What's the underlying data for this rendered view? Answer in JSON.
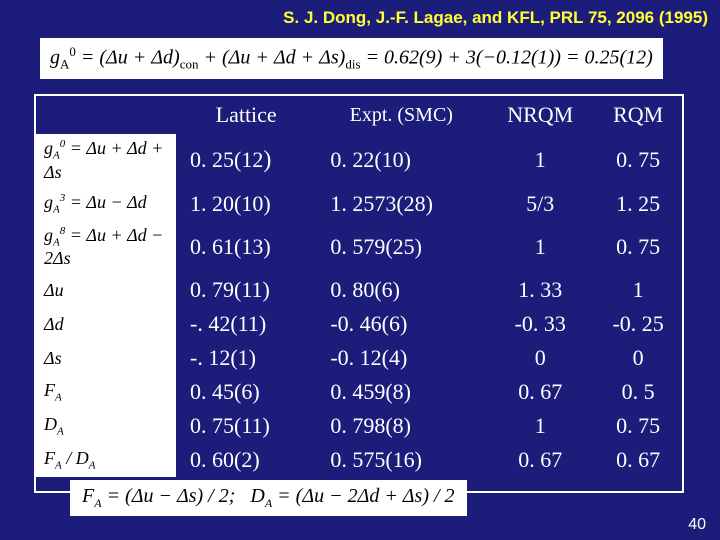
{
  "citation": "S. J. Dong, J.-F. Lagae, and KFL, PRL 75, 2096 (1995)",
  "eq_top": "g_A^0 = (Δu + Δd)_con + (Δu + Δd + Δs)_dis = 0.62(9) + 3(−0.12(1)) = 0.25(12)",
  "eq_bottom": "F_A = (Δu − Δs) / 2;   D_A = (Δu − 2Δd + Δs) / 2",
  "page_number": "40",
  "table": {
    "headers": [
      "",
      "Lattice",
      "Expt. (SMC)",
      "NRQM",
      "RQM"
    ],
    "row_labels_html": [
      "g<span class='sub'>A</span><span class='sup'>0</span> = Δu + Δd + Δs",
      "g<span class='sub'>A</span><span class='sup'>3</span> = Δu − Δd",
      "g<span class='sub'>A</span><span class='sup'>8</span> = Δu + Δd − 2Δs",
      "Δu",
      "Δd",
      "Δs",
      "F<span class='sub'>A</span>",
      "D<span class='sub'>A</span>",
      "F<span class='sub'>A</span> / D<span class='sub'>A</span>"
    ],
    "rows": [
      [
        "0. 25(12)",
        "0. 22(10)",
        "1",
        "0. 75"
      ],
      [
        "1. 20(10)",
        "1. 2573(28)",
        "5/3",
        "1. 25"
      ],
      [
        "0. 61(13)",
        "0. 579(25)",
        "1",
        "0. 75"
      ],
      [
        "0. 79(11)",
        "0. 80(6)",
        "1. 33",
        "1"
      ],
      [
        "-. 42(11)",
        "-0. 46(6)",
        "-0. 33",
        "-0. 25"
      ],
      [
        "-. 12(1)",
        "-0. 12(4)",
        "0",
        "0"
      ],
      [
        "0. 45(6)",
        "0. 459(8)",
        "0. 67",
        "0. 5"
      ],
      [
        "0. 75(11)",
        "0. 798(8)",
        "1",
        "0. 75"
      ],
      [
        "0. 60(2)",
        "0. 575(16)",
        "0. 67",
        "0. 67"
      ]
    ]
  },
  "colors": {
    "background": "#1c1c7a",
    "citation": "#ffff33",
    "text": "#ffffff",
    "box_bg": "#ffffff",
    "box_text": "#000000"
  }
}
